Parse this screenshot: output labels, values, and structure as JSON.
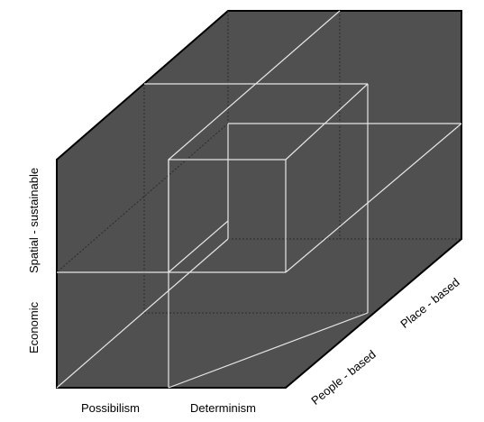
{
  "colors": {
    "face_fill": "#505050",
    "outline": "#000000",
    "division_line": "#e6e6e6",
    "hidden_line": "#2b2b2b",
    "background": "#ffffff"
  },
  "axes": {
    "horizontal": {
      "labels": [
        "Possibilism",
        "Determinism"
      ]
    },
    "vertical": {
      "labels": [
        "Economic",
        "Spatial - sustainable"
      ]
    },
    "depth": {
      "labels": [
        "People - based",
        "Place - based"
      ]
    }
  }
}
